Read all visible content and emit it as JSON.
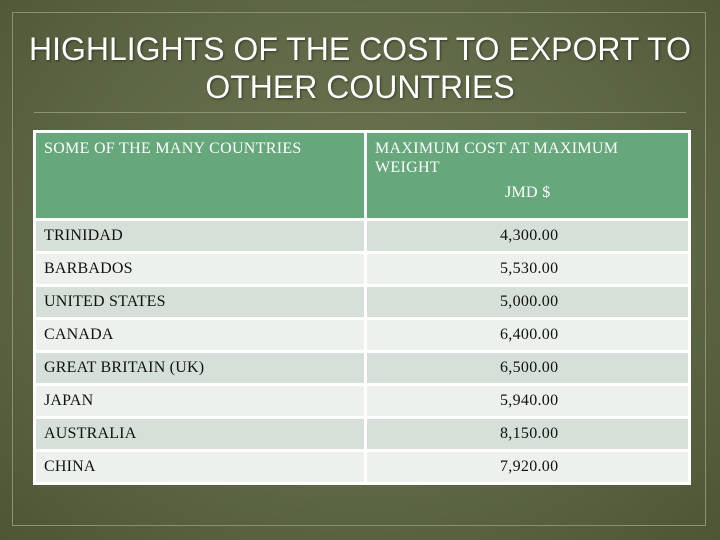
{
  "title": "HIGHLIGHTS OF THE COST TO EXPORT TO OTHER COUNTRIES",
  "table": {
    "header_country": "SOME OF THE MANY COUNTRIES",
    "header_cost": "MAXIMUM COST AT MAXIMUM WEIGHT",
    "header_unit": "JMD $",
    "rows": [
      {
        "country": "TRINIDAD",
        "cost": "4,300.00"
      },
      {
        "country": "BARBADOS",
        "cost": "5,530.00"
      },
      {
        "country": "UNITED STATES",
        "cost": "5,000.00"
      },
      {
        "country": "CANADA",
        "cost": "6,400.00"
      },
      {
        "country": "GREAT BRITAIN (UK)",
        "cost": "6,500.00"
      },
      {
        "country": "JAPAN",
        "cost": "5,940.00"
      },
      {
        "country": "AUSTRALIA",
        "cost": "8,150.00"
      },
      {
        "country": "CHINA",
        "cost": "7,920.00"
      }
    ]
  },
  "colors": {
    "background": "#59633f",
    "header_fill": "#66a77b",
    "row_odd": "#d6e0d8",
    "row_even": "#edf1ed"
  }
}
